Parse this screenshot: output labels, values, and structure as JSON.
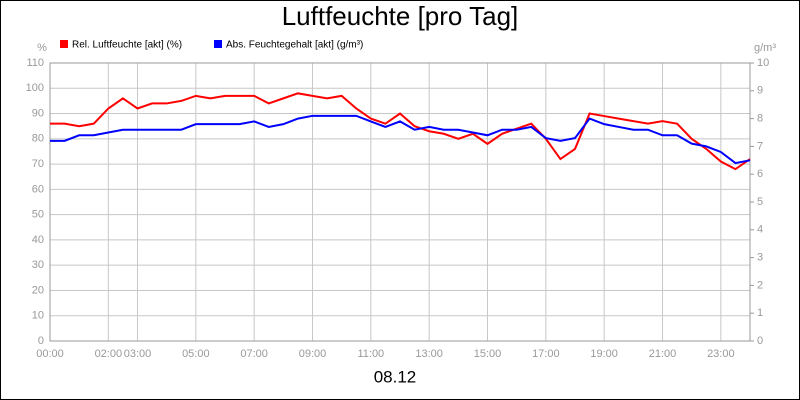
{
  "chart_data": {
    "type": "line",
    "title": "Luftfeuchte [pro Tag]",
    "xlabel": "08.12",
    "ylabel": "%",
    "y2label": "g/m³",
    "x": [
      0,
      0.5,
      1,
      1.5,
      2,
      2.5,
      3,
      3.5,
      4,
      4.5,
      5,
      5.5,
      6,
      6.5,
      7,
      7.5,
      8,
      8.5,
      9,
      9.5,
      10,
      10.5,
      11,
      11.5,
      12,
      12.5,
      13,
      13.5,
      14,
      14.5,
      15,
      15.5,
      16,
      16.5,
      17,
      17.5,
      18,
      18.5,
      19,
      19.5,
      20,
      20.5,
      21,
      21.5,
      22,
      22.5,
      23,
      23.5,
      24
    ],
    "series": [
      {
        "name": "Rel. Luftfeuchte [akt] (%)",
        "color": "#ff0000",
        "values": [
          86,
          86,
          85,
          86,
          92,
          96,
          92,
          94,
          94,
          95,
          97,
          96,
          97,
          97,
          97,
          94,
          96,
          98,
          97,
          96,
          97,
          92,
          88,
          86,
          90,
          85,
          83,
          82,
          80,
          82,
          78,
          82,
          84,
          86,
          80,
          72,
          76,
          90,
          89,
          88,
          87,
          86,
          87,
          86,
          80,
          76,
          71,
          68,
          72
        ]
      },
      {
        "name": "Abs. Feuchtegehalt [akt] (g/m³)",
        "color": "#0000ff",
        "axis": "y2",
        "values": [
          7.2,
          7.2,
          7.4,
          7.4,
          7.5,
          7.6,
          7.6,
          7.6,
          7.6,
          7.6,
          7.8,
          7.8,
          7.8,
          7.8,
          7.9,
          7.7,
          7.8,
          8.0,
          8.1,
          8.1,
          8.1,
          8.1,
          7.9,
          7.7,
          7.9,
          7.6,
          7.7,
          7.6,
          7.6,
          7.5,
          7.4,
          7.6,
          7.6,
          7.7,
          7.3,
          7.2,
          7.3,
          8.0,
          7.8,
          7.7,
          7.6,
          7.6,
          7.4,
          7.4,
          7.1,
          7.0,
          6.8,
          6.4,
          6.5
        ]
      }
    ],
    "xlim": [
      0,
      24
    ],
    "xticks": [
      {
        "value": 0,
        "label": "00:00"
      },
      {
        "value": 2,
        "label": "02:00"
      },
      {
        "value": 3,
        "label": "03:00"
      },
      {
        "value": 5,
        "label": "05:00"
      },
      {
        "value": 7,
        "label": "07:00"
      },
      {
        "value": 9,
        "label": "09:00"
      },
      {
        "value": 11,
        "label": "11:00"
      },
      {
        "value": 13,
        "label": "13:00"
      },
      {
        "value": 15,
        "label": "15:00"
      },
      {
        "value": 17,
        "label": "17:00"
      },
      {
        "value": 19,
        "label": "19:00"
      },
      {
        "value": 21,
        "label": "21:00"
      },
      {
        "value": 23,
        "label": "23:00"
      }
    ],
    "ylim": [
      0,
      110
    ],
    "yticks": [
      0,
      10,
      20,
      30,
      40,
      50,
      60,
      70,
      80,
      90,
      100,
      110
    ],
    "y2lim": [
      0,
      10
    ],
    "y2ticks": [
      0,
      1,
      2,
      3,
      4,
      5,
      6,
      7,
      8,
      9,
      10
    ],
    "grid": true
  }
}
